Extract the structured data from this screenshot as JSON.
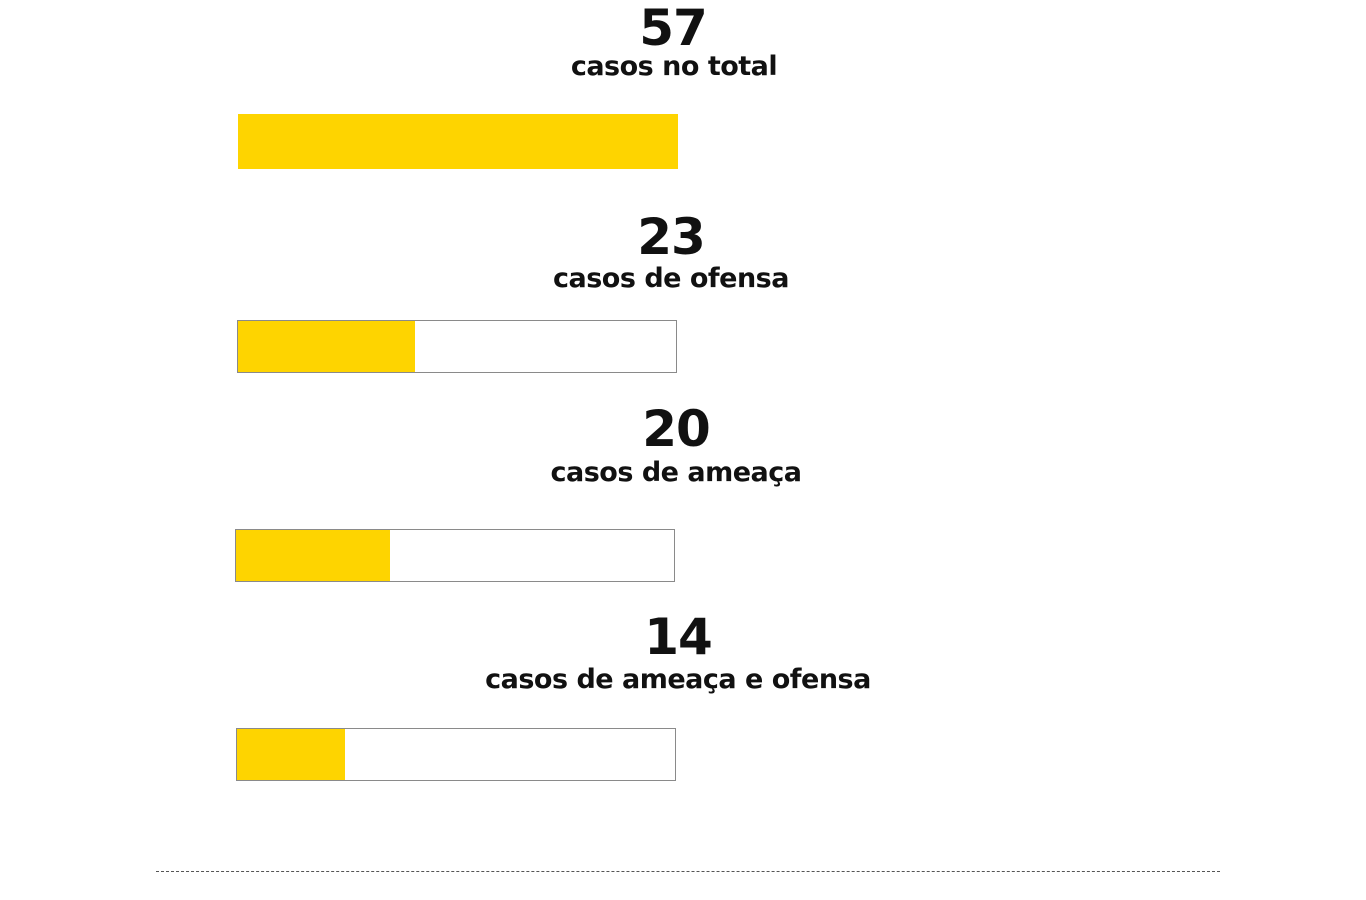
{
  "chart_data": {
    "type": "bar",
    "orientation": "horizontal",
    "max_value": 57,
    "bar_color": "#FED400",
    "track_border_color": "#8a8a8a",
    "items": [
      {
        "value": 57,
        "number_text": "57",
        "label": "casos no total",
        "fraction": 1.0
      },
      {
        "value": 23,
        "number_text": "23",
        "label": "casos de ofensa",
        "fraction": 0.4035
      },
      {
        "value": 20,
        "number_text": "20",
        "label": "casos de ameaça",
        "fraction": 0.3509
      },
      {
        "value": 14,
        "number_text": "14",
        "label": "casos de ameaça e ofensa",
        "fraction": 0.2456
      }
    ]
  }
}
